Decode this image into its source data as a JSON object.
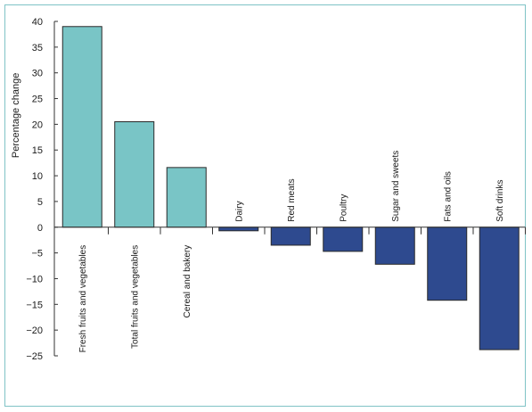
{
  "chart_data": {
    "type": "bar",
    "title": "",
    "xlabel": "",
    "ylabel": "Percentage  change",
    "ylim": [
      -25,
      40
    ],
    "yticks": [
      40,
      35,
      30,
      25,
      20,
      15,
      10,
      5,
      0,
      -5,
      -10,
      -15,
      -20,
      -25
    ],
    "grid": false,
    "categories": [
      "Fresh fruits and vegetables",
      "Total fruits and vegetables",
      "Cereal and bakery",
      "Dairy",
      "Red meats",
      "Poultry",
      "Sugar and sweets",
      "Fats and oils",
      "Soft drinks"
    ],
    "values": [
      39,
      20.5,
      11.6,
      -0.7,
      -3.5,
      -4.7,
      -7.2,
      -14.2,
      -23.8
    ],
    "colors": {
      "positive": "#79c5c6",
      "negative": "#2e4a8f",
      "frame": "#7fc3c6",
      "axis": "#333333"
    }
  }
}
